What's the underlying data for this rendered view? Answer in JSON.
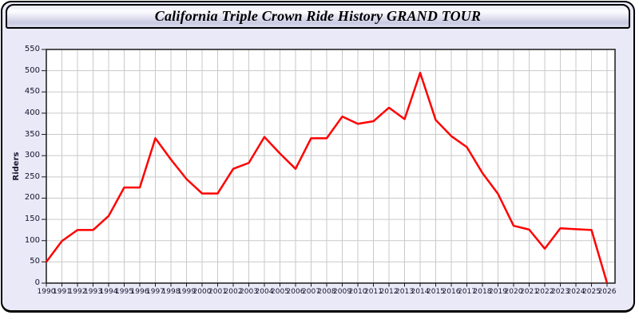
{
  "window": {
    "title": "California Triple Crown Ride History GRAND TOUR"
  },
  "colors": {
    "line": "#ff0000",
    "window_background": "#e9e9f8",
    "plot_background": "#ffffff",
    "gridline": "#c9c9c9",
    "axis": "#1a1a1a",
    "label_text": "#15152e"
  },
  "chart_data": {
    "type": "line",
    "title": "California Triple Crown Ride History GRAND TOUR",
    "xlabel": "",
    "ylabel": "Riders",
    "ylim": [
      0,
      550
    ],
    "ytick_step": 50,
    "grid": true,
    "legend": false,
    "x": [
      1990,
      1991,
      1992,
      1993,
      1994,
      1995,
      1996,
      1997,
      1998,
      1999,
      2000,
      2001,
      2002,
      2003,
      2004,
      2005,
      2006,
      2007,
      2008,
      2009,
      2010,
      2011,
      2012,
      2013,
      2014,
      2015,
      2016,
      2017,
      2018,
      2019,
      2020,
      2021,
      2022,
      2023,
      2024,
      2025,
      2026
    ],
    "series": [
      {
        "name": "Riders",
        "values": [
          50,
          99,
          125,
          125,
          158,
          225,
          225,
          341,
          291,
          245,
          211,
          211,
          269,
          283,
          344,
          305,
          269,
          341,
          341,
          392,
          375,
          381,
          413,
          386,
          495,
          384,
          346,
          320,
          259,
          210,
          135,
          126,
          81,
          129,
          127,
          125,
          0
        ]
      }
    ]
  }
}
